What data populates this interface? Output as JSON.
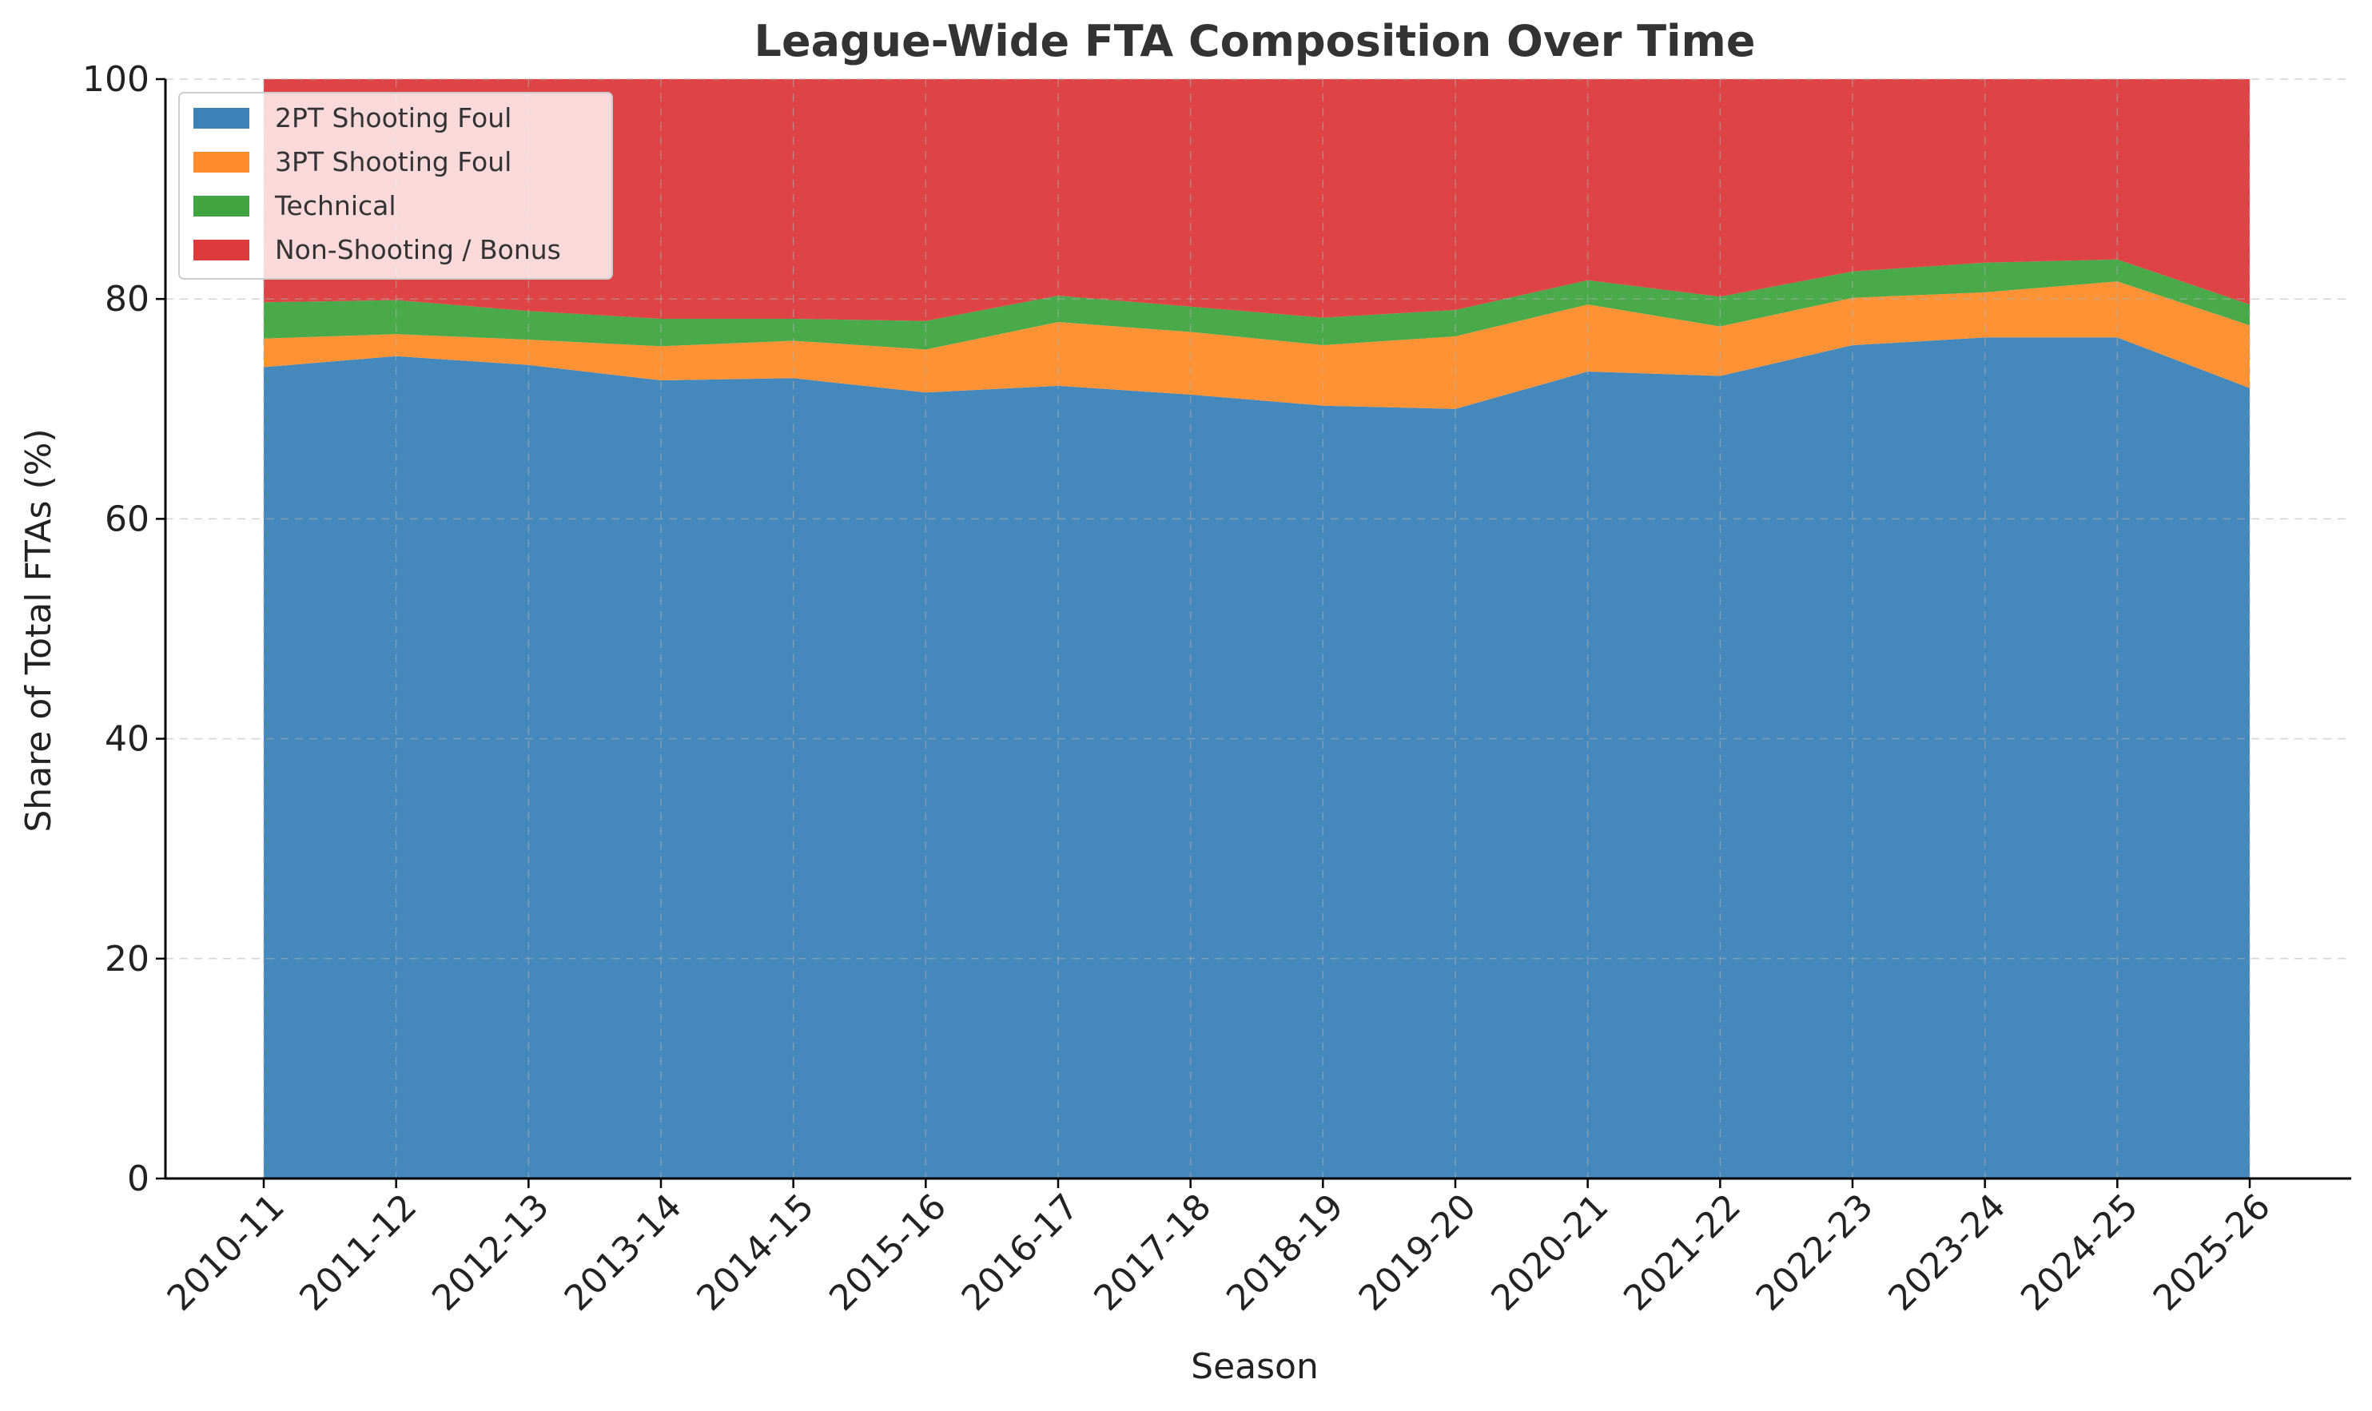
{
  "chart_data": {
    "type": "area",
    "stacked": true,
    "title": "League-Wide FTA Composition Over Time",
    "xlabel": "Season",
    "ylabel": "Share of Total FTAs (%)",
    "ylim": [
      0,
      100
    ],
    "yticks": [
      0,
      20,
      40,
      60,
      80,
      100
    ],
    "grid": true,
    "legend_position": "top-left",
    "categories": [
      "2010-11",
      "2011-12",
      "2012-13",
      "2013-14",
      "2014-15",
      "2015-16",
      "2016-17",
      "2017-18",
      "2018-19",
      "2019-20",
      "2020-21",
      "2021-22",
      "2022-23",
      "2023-24",
      "2024-25",
      "2025-26"
    ],
    "series": [
      {
        "name": "2PT Shooting Foul",
        "color": "#3b82b8",
        "values": [
          73.8,
          74.8,
          74.0,
          72.6,
          72.8,
          71.5,
          72.1,
          71.3,
          70.3,
          70.0,
          73.4,
          73.0,
          75.8,
          76.5,
          76.5,
          71.9
        ]
      },
      {
        "name": "3PT Shooting Foul",
        "color": "#ff8c2a",
        "values": [
          2.6,
          2.0,
          2.3,
          3.1,
          3.4,
          3.9,
          5.8,
          5.7,
          5.5,
          6.6,
          6.1,
          4.5,
          4.3,
          4.1,
          5.1,
          5.7
        ]
      },
      {
        "name": "Technical",
        "color": "#40a540",
        "values": [
          3.3,
          3.1,
          2.6,
          2.5,
          2.0,
          2.6,
          2.4,
          2.3,
          2.5,
          2.4,
          2.2,
          2.7,
          2.4,
          2.7,
          2.0,
          1.9
        ]
      },
      {
        "name": "Non-Shooting / Bonus",
        "color": "#dc3a3b",
        "values": [
          20.3,
          20.1,
          21.1,
          21.8,
          21.8,
          22.0,
          19.7,
          20.7,
          21.7,
          21.0,
          18.3,
          19.8,
          17.5,
          16.7,
          16.4,
          20.5
        ]
      }
    ]
  }
}
